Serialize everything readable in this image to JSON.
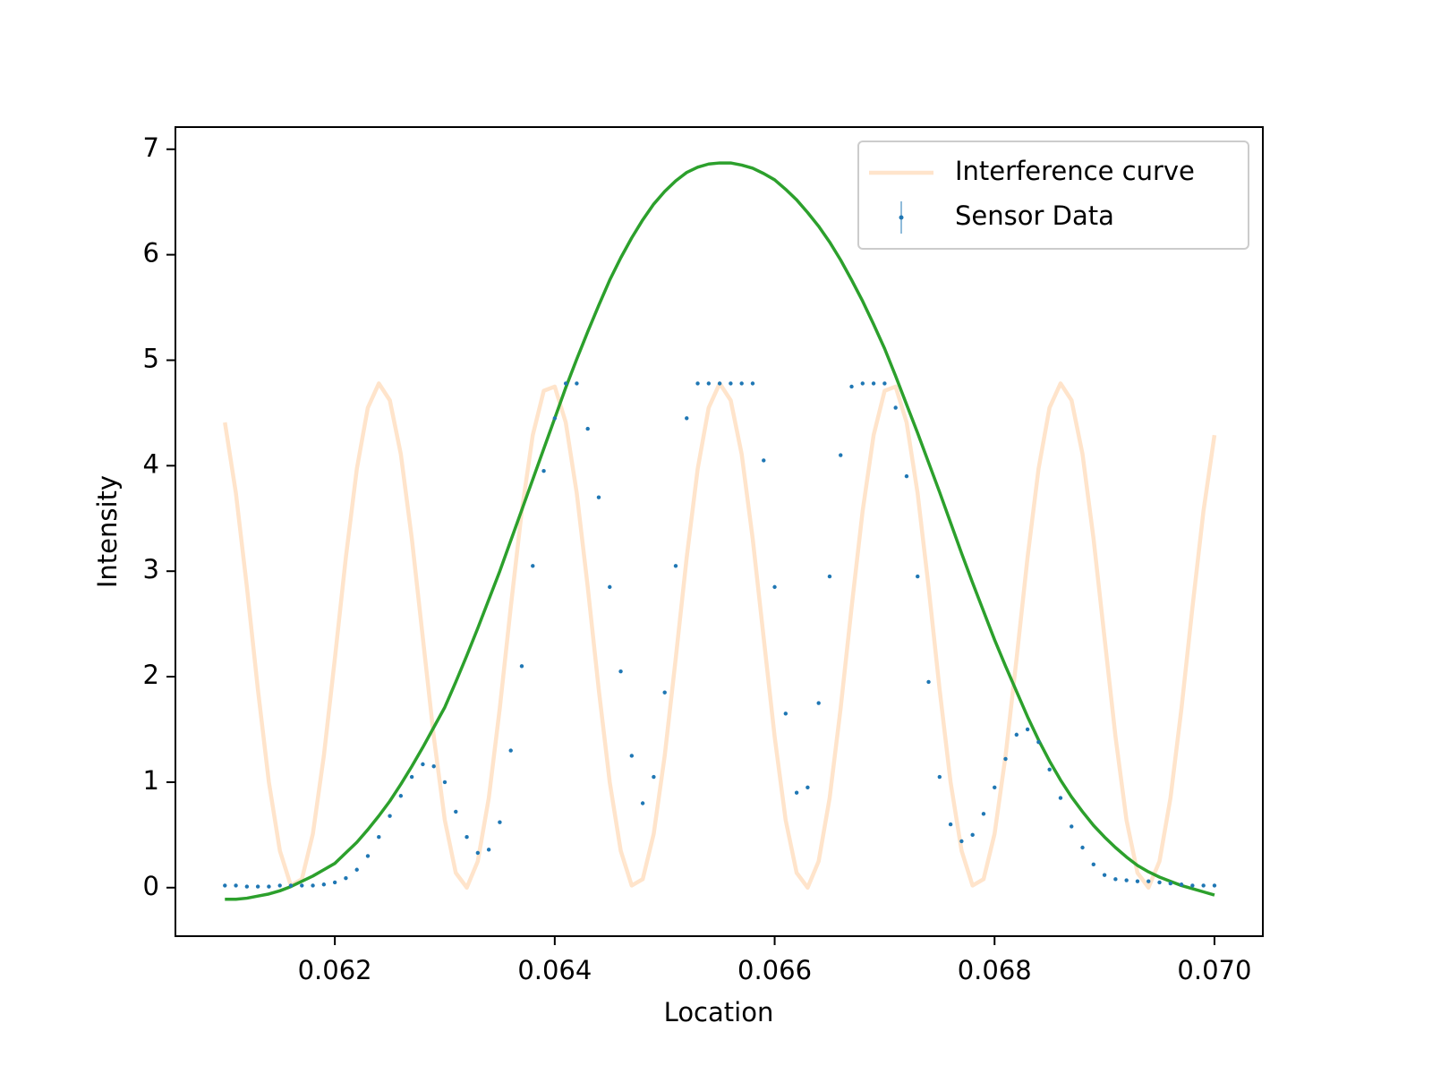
{
  "chart_data": {
    "type": "line",
    "xlabel": "Location",
    "ylabel": "Intensity",
    "x": [
      0.061,
      0.0611,
      0.0612,
      0.0613,
      0.0614,
      0.0615,
      0.0616,
      0.0617,
      0.0618,
      0.0619,
      0.062,
      0.0621,
      0.0622,
      0.0623,
      0.0624,
      0.0625,
      0.0626,
      0.0627,
      0.0628,
      0.0629,
      0.063,
      0.0631,
      0.0632,
      0.0633,
      0.0634,
      0.0635,
      0.0636,
      0.0637,
      0.0638,
      0.0639,
      0.064,
      0.0641,
      0.0642,
      0.0643,
      0.0644,
      0.0645,
      0.0646,
      0.0647,
      0.0648,
      0.0649,
      0.065,
      0.0651,
      0.0652,
      0.0653,
      0.0654,
      0.0655,
      0.0656,
      0.0657,
      0.0658,
      0.0659,
      0.066,
      0.0661,
      0.0662,
      0.0663,
      0.0664,
      0.0665,
      0.0666,
      0.0667,
      0.0668,
      0.0669,
      0.067,
      0.0671,
      0.0672,
      0.0673,
      0.0674,
      0.0675,
      0.0676,
      0.0677,
      0.0678,
      0.0679,
      0.068,
      0.0681,
      0.0682,
      0.0683,
      0.0684,
      0.0685,
      0.0686,
      0.0687,
      0.0688,
      0.0689,
      0.069,
      0.0691,
      0.0692,
      0.0693,
      0.0694,
      0.0695,
      0.0696,
      0.0697,
      0.0698,
      0.0699,
      0.07
    ],
    "series": [
      {
        "name": "Interference curve",
        "color": "#ffe4cb",
        "mode": "lines",
        "values": [
          4.41,
          3.74,
          2.85,
          1.88,
          1.0,
          0.35,
          0.02,
          0.08,
          0.51,
          1.25,
          2.17,
          3.13,
          3.97,
          4.55,
          4.78,
          4.62,
          4.11,
          3.31,
          2.37,
          1.43,
          0.64,
          0.14,
          0.0,
          0.25,
          0.85,
          1.7,
          2.66,
          3.57,
          4.29,
          4.71,
          4.75,
          4.41,
          3.74,
          2.85,
          1.88,
          1.0,
          0.35,
          0.02,
          0.08,
          0.51,
          1.25,
          2.17,
          3.13,
          3.97,
          4.55,
          4.78,
          4.62,
          4.11,
          3.31,
          2.37,
          1.43,
          0.64,
          0.14,
          0.0,
          0.25,
          0.85,
          1.7,
          2.66,
          3.57,
          4.29,
          4.71,
          4.75,
          4.41,
          3.74,
          2.85,
          1.88,
          1.0,
          0.35,
          0.02,
          0.08,
          0.51,
          1.25,
          2.17,
          3.13,
          3.97,
          4.55,
          4.78,
          4.62,
          4.11,
          3.31,
          2.37,
          1.43,
          0.64,
          0.14,
          0.0,
          0.25,
          0.85,
          1.7,
          2.66,
          3.57,
          4.29
        ]
      },
      {
        "color": "#2ca02c",
        "mode": "lines",
        "values": [
          -0.11,
          -0.11,
          -0.1,
          -0.08,
          -0.06,
          -0.03,
          0.01,
          0.06,
          0.11,
          0.17,
          0.23,
          0.33,
          0.43,
          0.55,
          0.68,
          0.82,
          0.98,
          1.15,
          1.33,
          1.52,
          1.71,
          1.95,
          2.2,
          2.46,
          2.73,
          3.0,
          3.29,
          3.58,
          3.87,
          4.16,
          4.45,
          4.74,
          5.01,
          5.27,
          5.52,
          5.76,
          5.97,
          6.16,
          6.33,
          6.48,
          6.6,
          6.7,
          6.78,
          6.83,
          6.86,
          6.87,
          6.87,
          6.85,
          6.82,
          6.77,
          6.71,
          6.62,
          6.52,
          6.4,
          6.27,
          6.12,
          5.95,
          5.76,
          5.56,
          5.34,
          5.11,
          4.85,
          4.58,
          4.31,
          4.03,
          3.75,
          3.46,
          3.17,
          2.89,
          2.62,
          2.35,
          2.1,
          1.86,
          1.62,
          1.4,
          1.2,
          1.02,
          0.86,
          0.72,
          0.59,
          0.48,
          0.38,
          0.29,
          0.21,
          0.15,
          0.1,
          0.06,
          0.02,
          -0.01,
          -0.04,
          -0.07
        ]
      },
      {
        "name": "Sensor Data",
        "color": "#1f77b4",
        "mode": "markers",
        "values": [
          0.02,
          0.02,
          0.01,
          0.01,
          0.01,
          0.02,
          0.02,
          0.02,
          0.02,
          0.03,
          0.05,
          0.09,
          0.17,
          0.3,
          0.48,
          0.68,
          0.87,
          1.05,
          1.17,
          1.15,
          1.0,
          0.72,
          0.48,
          0.33,
          0.36,
          0.62,
          1.3,
          2.1,
          3.05,
          3.95,
          4.45,
          4.78,
          4.78,
          4.35,
          3.7,
          2.85,
          2.05,
          1.25,
          0.8,
          1.05,
          1.85,
          3.05,
          4.45,
          4.78,
          4.78,
          4.78,
          4.78,
          4.78,
          4.78,
          4.05,
          2.85,
          1.65,
          0.9,
          0.95,
          1.75,
          2.95,
          4.1,
          4.75,
          4.78,
          4.78,
          4.78,
          4.55,
          3.9,
          2.95,
          1.95,
          1.05,
          0.6,
          0.44,
          0.5,
          0.7,
          0.95,
          1.22,
          1.45,
          1.5,
          1.38,
          1.12,
          0.85,
          0.58,
          0.38,
          0.22,
          0.12,
          0.08,
          0.07,
          0.06,
          0.06,
          0.05,
          0.04,
          0.03,
          0.02,
          0.02,
          0.02
        ]
      }
    ],
    "xlim": [
      0.06055,
      0.07044
    ],
    "ylim": [
      -0.46,
      7.21
    ],
    "xticks": [
      0.062,
      0.064,
      0.066,
      0.068,
      {
        "value": 0.07,
        "label": "0.070"
      }
    ],
    "yticks": [
      0,
      1,
      2,
      3,
      4,
      5,
      6,
      7
    ],
    "legend": "upper right"
  }
}
